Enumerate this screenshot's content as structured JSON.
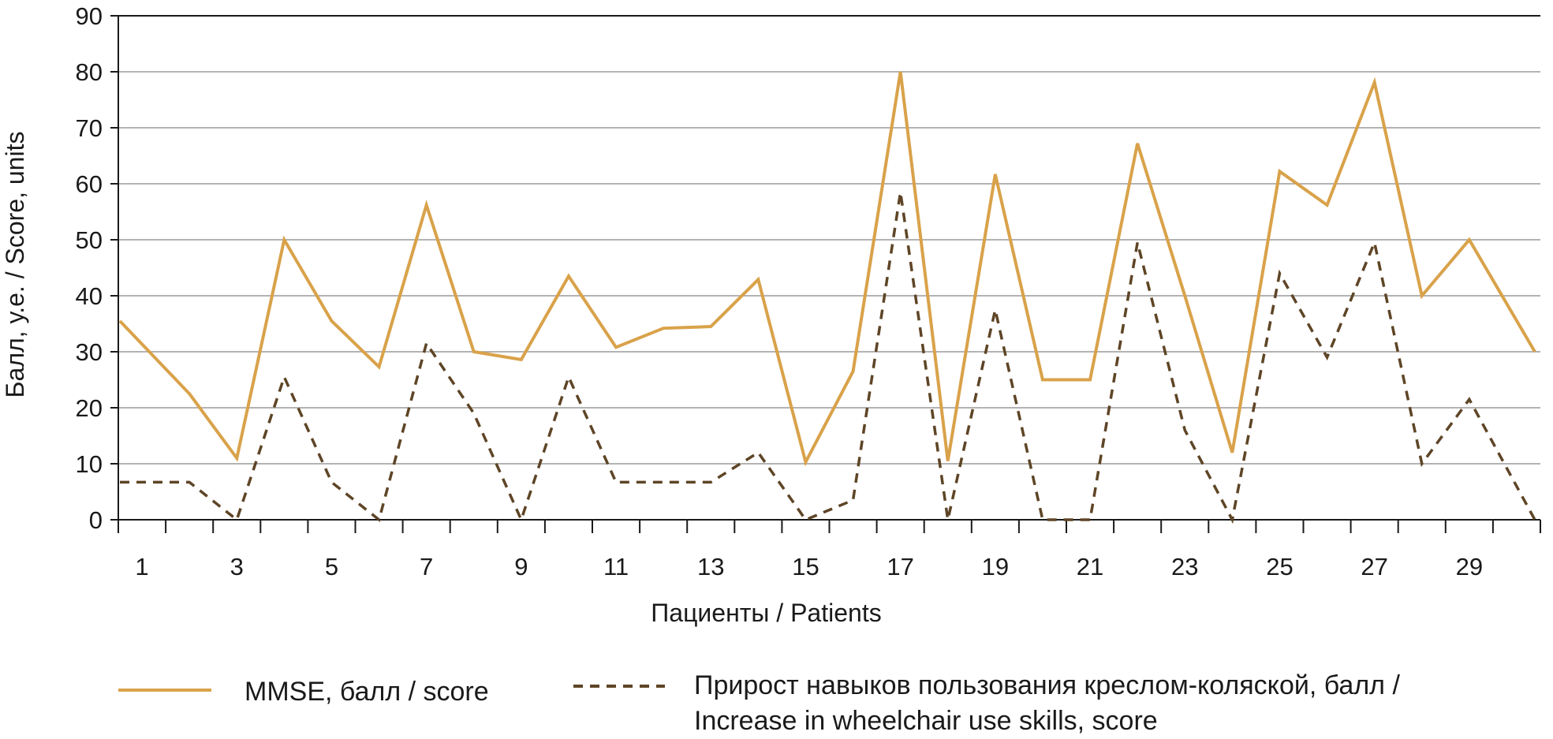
{
  "chart_data": {
    "type": "line",
    "xlabel": "Пациенты / Patients",
    "ylabel": "Балл, у.е. / Score, units",
    "ylim": [
      0,
      90
    ],
    "yticks": [
      0,
      10,
      20,
      30,
      40,
      50,
      60,
      70,
      80,
      90
    ],
    "x": [
      1,
      2,
      3,
      4,
      5,
      6,
      7,
      8,
      9,
      10,
      11,
      12,
      13,
      14,
      15,
      16,
      17,
      18,
      19,
      20,
      21,
      22,
      23,
      24,
      25,
      26,
      27,
      28,
      29,
      30
    ],
    "xtick_labels": [
      "1",
      "3",
      "5",
      "7",
      "9",
      "11",
      "13",
      "15",
      "17",
      "19",
      "21",
      "23",
      "25",
      "27",
      "29"
    ],
    "grid": "horizontal",
    "legend_position": "bottom",
    "series": [
      {
        "name": "MMSE, балл / score",
        "color": "#D9A24A",
        "style": "solid",
        "values": [
          35.5,
          22.5,
          11,
          50,
          35.5,
          27.3,
          56.2,
          30,
          28.6,
          43.5,
          30.8,
          34.2,
          34.5,
          42.9,
          10.3,
          26.5,
          80,
          10.5,
          61.7,
          25,
          25,
          67.2,
          40,
          12,
          62.2,
          56.2,
          78.1,
          40,
          50,
          30
        ]
      },
      {
        "name": "Прирост навыков пользования креслом-коляской, балл / Increase in wheelchair use skills, score",
        "legend_lines": [
          "Прирост навыков пользования креслом-коляской, балл /",
          "Increase in wheelchair use skills, score"
        ],
        "color": "#5E4526",
        "style": "dashed",
        "values": [
          6.7,
          6.7,
          0,
          25.5,
          6.7,
          0,
          31.5,
          19,
          0,
          25.5,
          6.7,
          6.7,
          6.7,
          12,
          0,
          3.5,
          58.5,
          0,
          37.5,
          0,
          0,
          49.5,
          16,
          0,
          44,
          29,
          49.5,
          10,
          21.5,
          0
        ]
      }
    ]
  }
}
